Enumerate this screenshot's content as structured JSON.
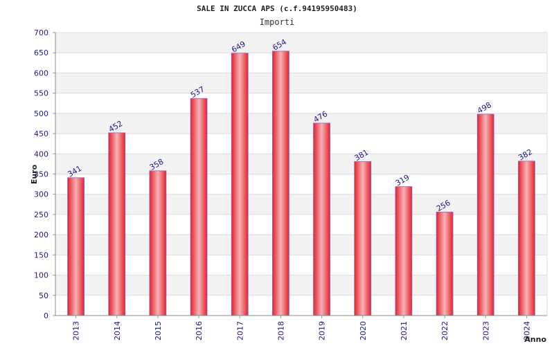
{
  "title": "SALE IN ZUCCA APS (c.f.94195950483)",
  "colors": {
    "bar": "#e8202a",
    "bar_highlight": "#f4b3b6",
    "bar_outline": "#7a6fd6",
    "band": "#f2f2f2",
    "text": "#1a1a8c"
  },
  "chart_data": {
    "type": "bar",
    "title": "Importi",
    "xlabel": "Anno",
    "ylabel": "Euro",
    "categories": [
      "2013",
      "2014",
      "2015",
      "2016",
      "2017",
      "2018",
      "2019",
      "2020",
      "2021",
      "2022",
      "2023",
      "2024"
    ],
    "values": [
      341,
      452,
      358,
      537,
      649,
      654,
      476,
      381,
      319,
      256,
      498,
      382
    ],
    "ylim": [
      0,
      700
    ],
    "yticks": [
      0,
      50,
      100,
      150,
      200,
      250,
      300,
      350,
      400,
      450,
      500,
      550,
      600,
      650,
      700
    ],
    "grid": true,
    "legend": "none"
  }
}
